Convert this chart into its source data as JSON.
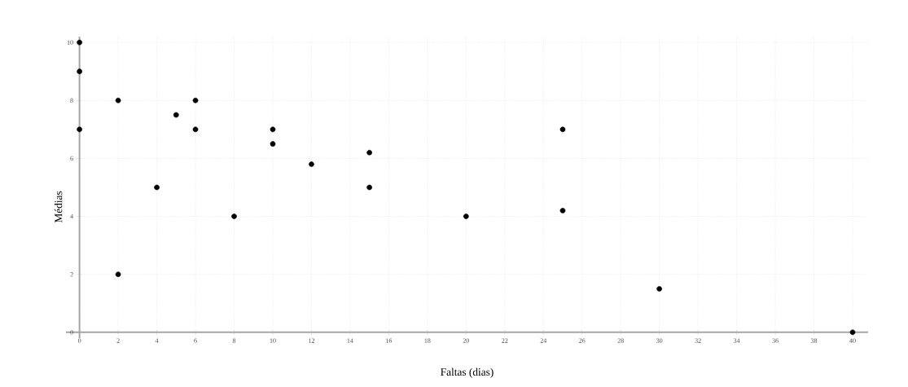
{
  "chart_data": {
    "type": "scatter",
    "xlabel": "Faltas (dias)",
    "ylabel": "Médias",
    "x": [
      0,
      0,
      0,
      2,
      2,
      4,
      5,
      6,
      6,
      8,
      10,
      10,
      12,
      15,
      15,
      20,
      25,
      25,
      30,
      40
    ],
    "values": [
      10,
      9,
      7,
      8,
      2,
      5,
      7.5,
      8,
      7,
      4,
      7,
      6.5,
      5.8,
      6.2,
      5,
      4,
      7,
      4.2,
      1.5,
      0
    ],
    "color": "#000000",
    "marker": "circle",
    "grid": true,
    "xlim": [
      -0.7,
      40.8
    ],
    "ylim": [
      -0.2,
      10.2
    ],
    "xticks": [
      0,
      2,
      4,
      6,
      8,
      10,
      12,
      14,
      16,
      18,
      20,
      22,
      24,
      26,
      28,
      30,
      32,
      34,
      36,
      38,
      40
    ],
    "yticks": [
      0,
      2,
      4,
      6,
      8,
      10
    ]
  }
}
